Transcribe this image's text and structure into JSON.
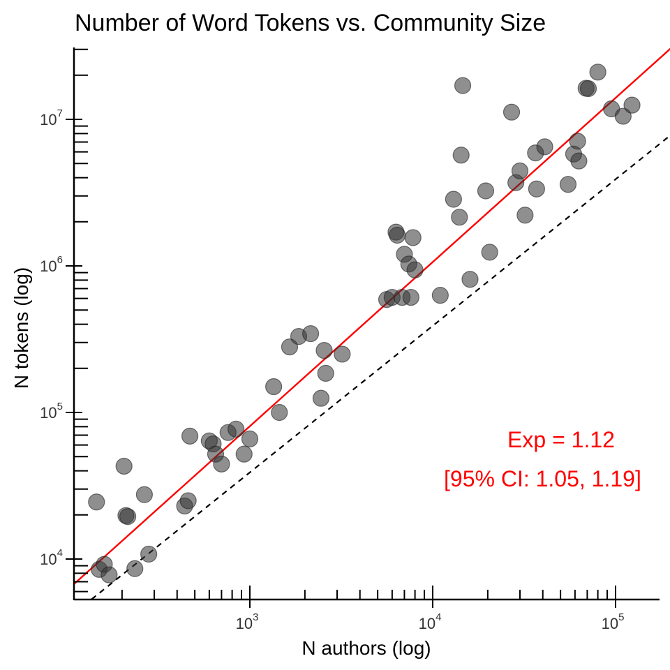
{
  "chart_data": {
    "type": "scatter",
    "title": "Number of Word Tokens vs. Community Size",
    "xlabel": "N authors (log)",
    "ylabel": "N tokens (log)",
    "x_scale": "log",
    "y_scale": "log",
    "xlim": [
      130,
      180000
    ],
    "ylim": [
      5300,
      30000000
    ],
    "x_ticks": [
      {
        "base": "10",
        "exp": "3",
        "value": 1000
      },
      {
        "base": "10",
        "exp": "4",
        "value": 10000
      },
      {
        "base": "10",
        "exp": "5",
        "value": 100000
      }
    ],
    "y_ticks": [
      {
        "base": "10",
        "exp": "4",
        "value": 10000
      },
      {
        "base": "10",
        "exp": "5",
        "value": 100000
      },
      {
        "base": "10",
        "exp": "6",
        "value": 1000000
      },
      {
        "base": "10",
        "exp": "7",
        "value": 10000000
      }
    ],
    "grid": false,
    "legend": "none",
    "points": [
      {
        "x": 145,
        "y": 24500
      },
      {
        "x": 150,
        "y": 8500
      },
      {
        "x": 160,
        "y": 9200
      },
      {
        "x": 170,
        "y": 7800
      },
      {
        "x": 205,
        "y": 43000
      },
      {
        "x": 210,
        "y": 19800
      },
      {
        "x": 215,
        "y": 19500
      },
      {
        "x": 235,
        "y": 8600
      },
      {
        "x": 265,
        "y": 27500
      },
      {
        "x": 280,
        "y": 10800
      },
      {
        "x": 440,
        "y": 23000
      },
      {
        "x": 460,
        "y": 25000
      },
      {
        "x": 470,
        "y": 69000
      },
      {
        "x": 600,
        "y": 64000
      },
      {
        "x": 630,
        "y": 61000
      },
      {
        "x": 650,
        "y": 52000
      },
      {
        "x": 700,
        "y": 44500
      },
      {
        "x": 760,
        "y": 73000
      },
      {
        "x": 840,
        "y": 77000
      },
      {
        "x": 930,
        "y": 52000
      },
      {
        "x": 1000,
        "y": 66000
      },
      {
        "x": 1350,
        "y": 150000
      },
      {
        "x": 1450,
        "y": 100000
      },
      {
        "x": 1650,
        "y": 280000
      },
      {
        "x": 1850,
        "y": 330000
      },
      {
        "x": 2150,
        "y": 345000
      },
      {
        "x": 2450,
        "y": 125000
      },
      {
        "x": 2550,
        "y": 265000
      },
      {
        "x": 2600,
        "y": 185000
      },
      {
        "x": 3200,
        "y": 250000
      },
      {
        "x": 5600,
        "y": 590000
      },
      {
        "x": 6000,
        "y": 610000
      },
      {
        "x": 6300,
        "y": 1700000
      },
      {
        "x": 6400,
        "y": 1620000
      },
      {
        "x": 6800,
        "y": 610000
      },
      {
        "x": 7000,
        "y": 1200000
      },
      {
        "x": 7400,
        "y": 1030000
      },
      {
        "x": 7600,
        "y": 610000
      },
      {
        "x": 7800,
        "y": 1560000
      },
      {
        "x": 8000,
        "y": 940000
      },
      {
        "x": 11000,
        "y": 630000
      },
      {
        "x": 13000,
        "y": 2850000
      },
      {
        "x": 14000,
        "y": 2150000
      },
      {
        "x": 14300,
        "y": 5700000
      },
      {
        "x": 14600,
        "y": 17000000
      },
      {
        "x": 16000,
        "y": 810000
      },
      {
        "x": 19500,
        "y": 3250000
      },
      {
        "x": 20500,
        "y": 1240000
      },
      {
        "x": 27000,
        "y": 11200000
      },
      {
        "x": 28500,
        "y": 3700000
      },
      {
        "x": 30000,
        "y": 4450000
      },
      {
        "x": 32000,
        "y": 2220000
      },
      {
        "x": 36500,
        "y": 5900000
      },
      {
        "x": 37000,
        "y": 3350000
      },
      {
        "x": 41000,
        "y": 6500000
      },
      {
        "x": 55000,
        "y": 3600000
      },
      {
        "x": 59000,
        "y": 5800000
      },
      {
        "x": 62000,
        "y": 7100000
      },
      {
        "x": 63000,
        "y": 5200000
      },
      {
        "x": 69000,
        "y": 16300000
      },
      {
        "x": 71000,
        "y": 16200000
      },
      {
        "x": 80000,
        "y": 21000000
      },
      {
        "x": 95000,
        "y": 11800000
      },
      {
        "x": 110000,
        "y": 10500000
      },
      {
        "x": 123000,
        "y": 12500000
      }
    ],
    "fit_line": {
      "exponent": 1.12,
      "anchor_x": 130,
      "anchor_y": 8200,
      "color": "#ff0000"
    },
    "reference_line": {
      "slope": 1,
      "intercept_factor": 39,
      "style": "dashed",
      "color": "#000000"
    },
    "point_color": "#333333",
    "annotations": [
      {
        "text": "Exp = 1.12",
        "color": "#ff0000"
      },
      {
        "text": "[95% CI: 1.05, 1.19]",
        "color": "#ff0000"
      }
    ]
  }
}
